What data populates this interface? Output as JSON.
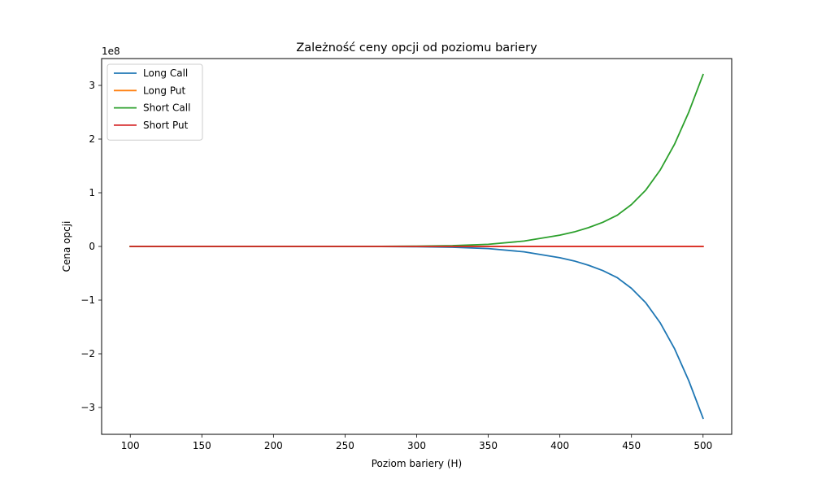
{
  "chart_data": {
    "type": "line",
    "title": "Zależność ceny opcji od poziomu bariery",
    "xlabel": "Poziom bariery (H)",
    "ylabel": "Cena opcji",
    "y_offset_label": "1e8",
    "y_scale_factor": 100000000,
    "xlim": [
      80,
      520
    ],
    "ylim": [
      -350000000,
      350000000
    ],
    "xticks": [
      100,
      150,
      200,
      250,
      300,
      350,
      400,
      450,
      500
    ],
    "yticks": [
      -300000000,
      -200000000,
      -100000000,
      0,
      100000000,
      200000000,
      300000000
    ],
    "ytick_labels": [
      "−3",
      "−2",
      "−1",
      "0",
      "1",
      "2",
      "3"
    ],
    "legend_position": "upper-left",
    "grid": false,
    "x": [
      100,
      150,
      200,
      250,
      275,
      300,
      325,
      350,
      375,
      400,
      410,
      420,
      430,
      440,
      450,
      460,
      470,
      480,
      490,
      500
    ],
    "series": [
      {
        "name": "Long Call",
        "color": "#1f77b4",
        "values": [
          0,
          0,
          0,
          -50000,
          -150000,
          -500000,
          -1500000,
          -4000000,
          -10000000,
          -21000000,
          -27000000,
          -35000000,
          -45000000,
          -58000000,
          -78000000,
          -105000000,
          -142000000,
          -190000000,
          -250000000,
          -320000000
        ]
      },
      {
        "name": "Long Put",
        "color": "#ff7f0e",
        "values": [
          0,
          0,
          0,
          0,
          0,
          0,
          0,
          0,
          0,
          0,
          0,
          0,
          0,
          0,
          0,
          0,
          0,
          0,
          0,
          0
        ]
      },
      {
        "name": "Short Call",
        "color": "#2ca02c",
        "values": [
          0,
          0,
          0,
          50000,
          150000,
          500000,
          1500000,
          4000000,
          10000000,
          21000000,
          27000000,
          35000000,
          45000000,
          58000000,
          78000000,
          105000000,
          142000000,
          190000000,
          250000000,
          320000000
        ]
      },
      {
        "name": "Short Put",
        "color": "#d62728",
        "values": [
          0,
          0,
          0,
          0,
          0,
          0,
          0,
          0,
          0,
          0,
          0,
          0,
          0,
          0,
          0,
          0,
          0,
          0,
          0,
          0
        ]
      }
    ]
  }
}
